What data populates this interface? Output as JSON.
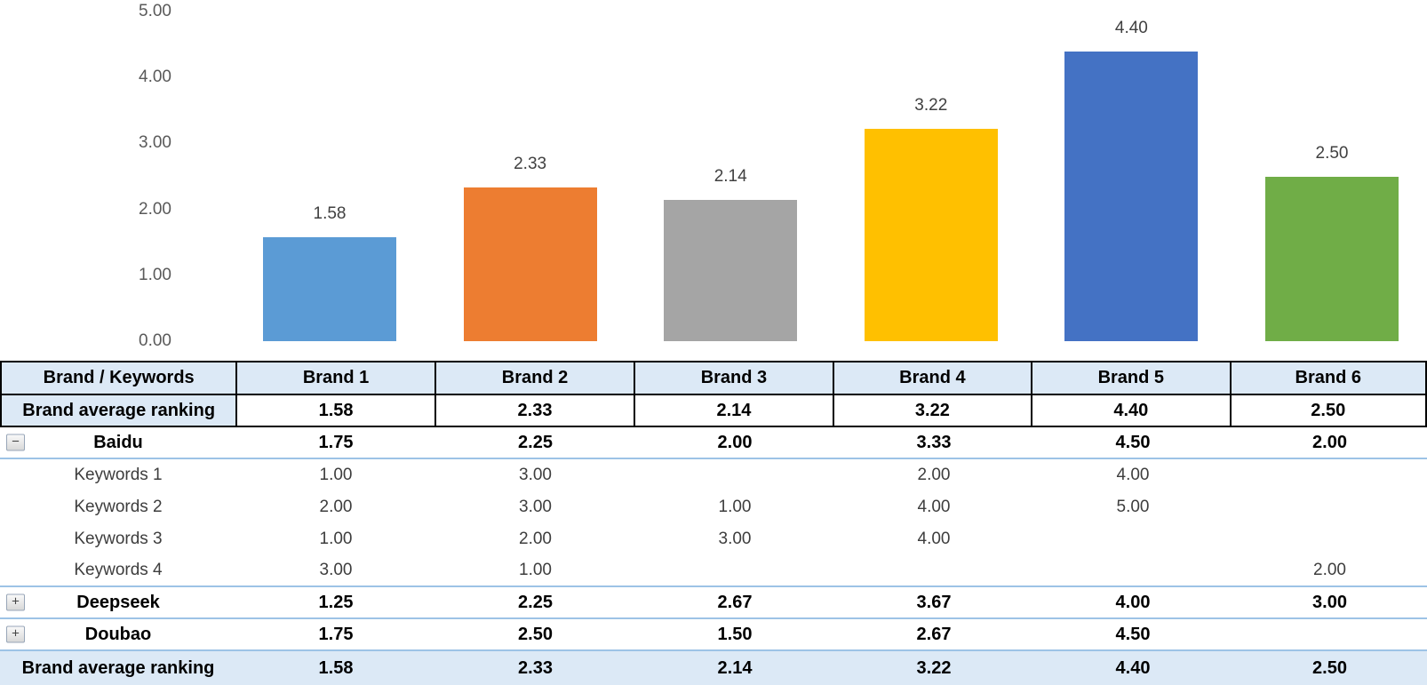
{
  "chart_data": {
    "type": "bar",
    "title": "",
    "xlabel": "",
    "ylabel": "",
    "categories": [
      "Brand 1",
      "Brand 2",
      "Brand 3",
      "Brand 4",
      "Brand 5",
      "Brand 6"
    ],
    "values": [
      1.58,
      2.33,
      2.14,
      3.22,
      4.4,
      2.5
    ],
    "labels": [
      "1.58",
      "2.33",
      "2.14",
      "3.22",
      "4.40",
      "2.50"
    ],
    "bar_colors": [
      "#5B9BD5",
      "#ED7D31",
      "#A5A5A5",
      "#FFC000",
      "#4472C4",
      "#70AD47"
    ],
    "ylim": [
      0,
      5
    ],
    "yticks": [
      "0.00",
      "1.00",
      "2.00",
      "3.00",
      "4.00",
      "5.00"
    ],
    "grid": false,
    "legend": "none",
    "data_labels": true
  },
  "table": {
    "columns": [
      "Brand / Keywords",
      "Brand 1",
      "Brand 2",
      "Brand 3",
      "Brand 4",
      "Brand 5",
      "Brand 6"
    ],
    "rows": [
      {
        "label": "Brand average ranking",
        "kind": "summary",
        "toggle": "",
        "separator": false,
        "values": [
          "1.58",
          "2.33",
          "2.14",
          "3.22",
          "4.40",
          "2.50"
        ]
      },
      {
        "label": "Baidu",
        "kind": "brand",
        "toggle": "minus",
        "separator": true,
        "values": [
          "1.75",
          "2.25",
          "2.00",
          "3.33",
          "4.50",
          "2.00"
        ]
      },
      {
        "label": "Keywords 1",
        "kind": "keyword",
        "toggle": "",
        "separator": false,
        "values": [
          "1.00",
          "3.00",
          "",
          "2.00",
          "4.00",
          ""
        ]
      },
      {
        "label": "Keywords 2",
        "kind": "keyword",
        "toggle": "",
        "separator": false,
        "values": [
          "2.00",
          "3.00",
          "1.00",
          "4.00",
          "5.00",
          ""
        ]
      },
      {
        "label": "Keywords 3",
        "kind": "keyword",
        "toggle": "",
        "separator": false,
        "values": [
          "1.00",
          "2.00",
          "3.00",
          "4.00",
          "",
          ""
        ]
      },
      {
        "label": "Keywords 4",
        "kind": "keyword",
        "toggle": "",
        "separator": true,
        "values": [
          "3.00",
          "1.00",
          "",
          "",
          "",
          "2.00"
        ]
      },
      {
        "label": "Deepseek",
        "kind": "brand",
        "toggle": "plus",
        "separator": true,
        "values": [
          "1.25",
          "2.25",
          "2.67",
          "3.67",
          "4.00",
          "3.00"
        ]
      },
      {
        "label": "Doubao",
        "kind": "brand",
        "toggle": "plus",
        "separator": true,
        "values": [
          "1.75",
          "2.50",
          "1.50",
          "2.67",
          "4.50",
          ""
        ]
      },
      {
        "label": "Brand average ranking",
        "kind": "footer",
        "toggle": "",
        "separator": false,
        "values": [
          "1.58",
          "2.33",
          "2.14",
          "3.22",
          "4.40",
          "2.50"
        ]
      }
    ]
  },
  "icons": {
    "minus": "−",
    "plus": "+"
  },
  "colors": {
    "header_fill": "#DCE9F6",
    "separator_blue": "#9DC3E6",
    "grid_border_black": "#000000",
    "axis_tick_text": "#595959",
    "data_label_text": "#404040"
  }
}
